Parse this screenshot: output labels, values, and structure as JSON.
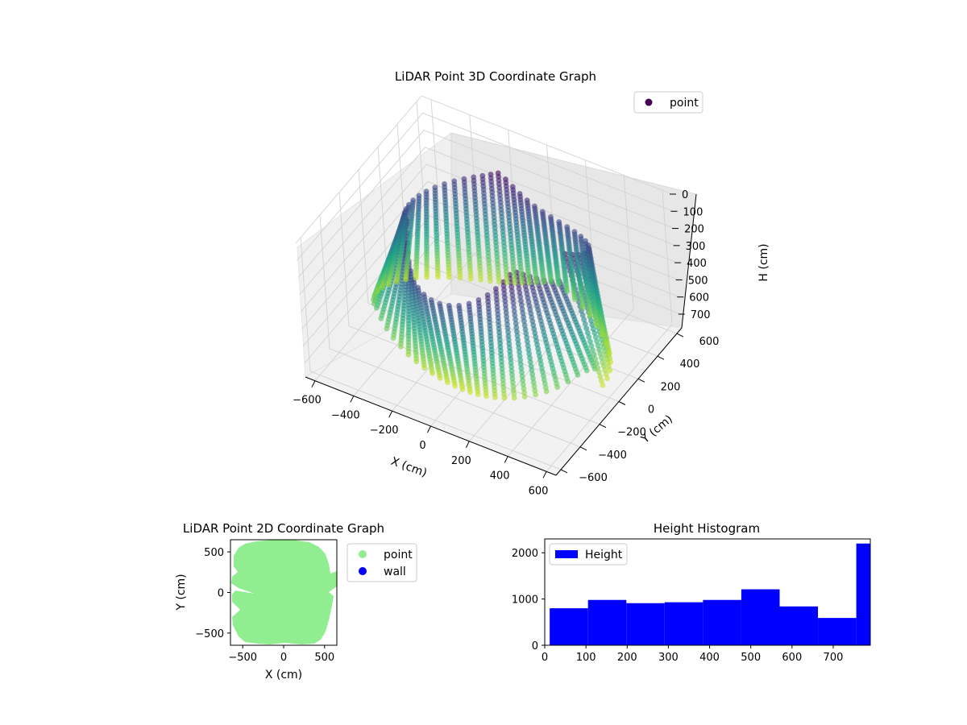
{
  "figure": {
    "background": "#ffffff"
  },
  "chart_data": [
    {
      "type": "scatter3d",
      "title": "LiDAR Point 3D Coordinate Graph",
      "xlabel": "X (cm)",
      "ylabel": "Y (cm)",
      "zlabel": "H (cm)",
      "xticks": [
        "−600",
        "−400",
        "−200",
        "0",
        "200",
        "400",
        "600"
      ],
      "yticks": [
        "−600",
        "−400",
        "−200",
        "0",
        "200",
        "400",
        "600"
      ],
      "zticks": [
        "0",
        "100",
        "200",
        "300",
        "400",
        "500",
        "600",
        "700"
      ],
      "xlim": [
        -650,
        650
      ],
      "ylim": [
        -650,
        650
      ],
      "zlim": [
        0,
        780
      ],
      "z_inverted": true,
      "grid": true,
      "legend": {
        "placement": "top-right",
        "entries": [
          {
            "label": "point",
            "color": "#440154"
          }
        ]
      },
      "colormap": "viridis",
      "description_series": "points arranged in vertical curtains around a ring; color varies with height"
    },
    {
      "type": "scatter",
      "title": "LiDAR Point 2D Coordinate Graph",
      "xlabel": "X (cm)",
      "ylabel": "Y (cm)",
      "xticks": [
        "−500",
        "0",
        "500"
      ],
      "yticks": [
        "−500",
        "0",
        "500"
      ],
      "xlim": [
        -650,
        650
      ],
      "ylim": [
        -650,
        650
      ],
      "legend": {
        "placement": "outside-right",
        "entries": [
          {
            "label": "point",
            "color": "#90ee90"
          },
          {
            "label": "wall",
            "color": "#0000ff"
          }
        ]
      },
      "series": [
        {
          "name": "point",
          "color": "#90ee90"
        },
        {
          "name": "wall",
          "color": "#0000ff"
        }
      ]
    },
    {
      "type": "bar",
      "title": "Height Histogram",
      "xticks": [
        "0",
        "100",
        "200",
        "300",
        "400",
        "500",
        "600",
        "700"
      ],
      "yticks": [
        "0",
        "1000",
        "2000"
      ],
      "xlim": [
        0,
        790
      ],
      "ylim": [
        0,
        2300
      ],
      "legend": {
        "placement": "top-left",
        "entries": [
          {
            "label": "Height",
            "color": "#0000ff"
          }
        ]
      },
      "bin_edges": [
        12,
        105,
        198,
        291,
        384,
        477,
        570,
        663,
        756,
        790
      ],
      "values": [
        800,
        980,
        910,
        930,
        980,
        1210,
        840,
        590,
        2200
      ],
      "color": "#0000ff"
    }
  ]
}
